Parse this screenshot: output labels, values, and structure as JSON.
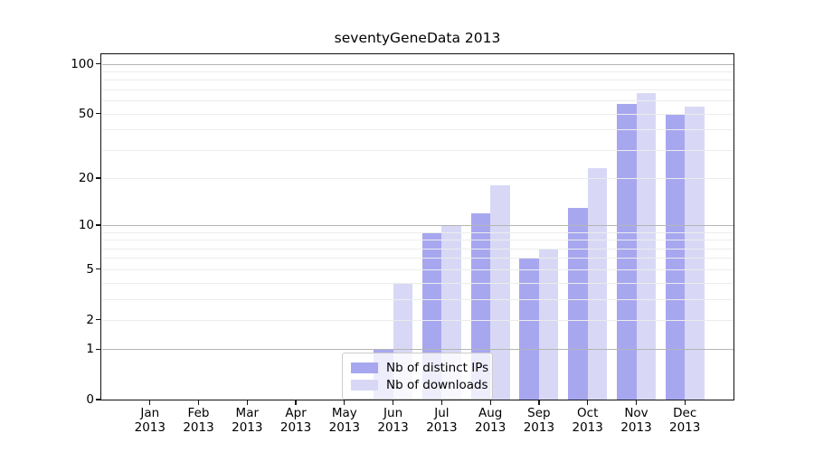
{
  "chart_data": {
    "type": "bar",
    "title": "seventyGeneData 2013",
    "categories": [
      "Jan",
      "Feb",
      "Mar",
      "Apr",
      "May",
      "Jun",
      "Jul",
      "Aug",
      "Sep",
      "Oct",
      "Nov",
      "Dec"
    ],
    "x_year_label": "2013",
    "series": [
      {
        "name": "Nb of distinct IPs",
        "slug": "distinct-ips",
        "color": "#a7a7f0",
        "values": [
          0,
          0,
          0,
          0,
          0,
          1,
          9,
          12,
          6,
          13,
          57,
          49
        ]
      },
      {
        "name": "Nb of downloads",
        "slug": "downloads",
        "color": "#d8d8f6",
        "values": [
          0,
          0,
          0,
          0,
          0,
          4,
          10,
          18,
          7,
          23,
          67,
          55
        ]
      }
    ],
    "yscale": "log1p",
    "ylim": [
      0,
      114.3
    ],
    "xlim": [
      -1,
      12
    ],
    "bar_width": 0.4,
    "yticks_labeled": [
      0,
      1,
      2,
      5,
      10,
      20,
      50,
      100
    ],
    "gridlines_major": [
      1,
      10,
      100
    ],
    "gridlines_minor": [
      2,
      3,
      4,
      5,
      6,
      7,
      8,
      9,
      20,
      30,
      40,
      50,
      60,
      70,
      80,
      90
    ],
    "grid": "horizontal",
    "legend": {
      "position": "lower-center",
      "entries": [
        "Nb of distinct IPs",
        "Nb of downloads"
      ]
    },
    "colors": {
      "grid_major": "#b5b5b5",
      "grid_minor": "#ececec",
      "spine": "#111111",
      "text": "#000000",
      "legend_border": "#cccccc",
      "background": "#ffffff"
    }
  }
}
